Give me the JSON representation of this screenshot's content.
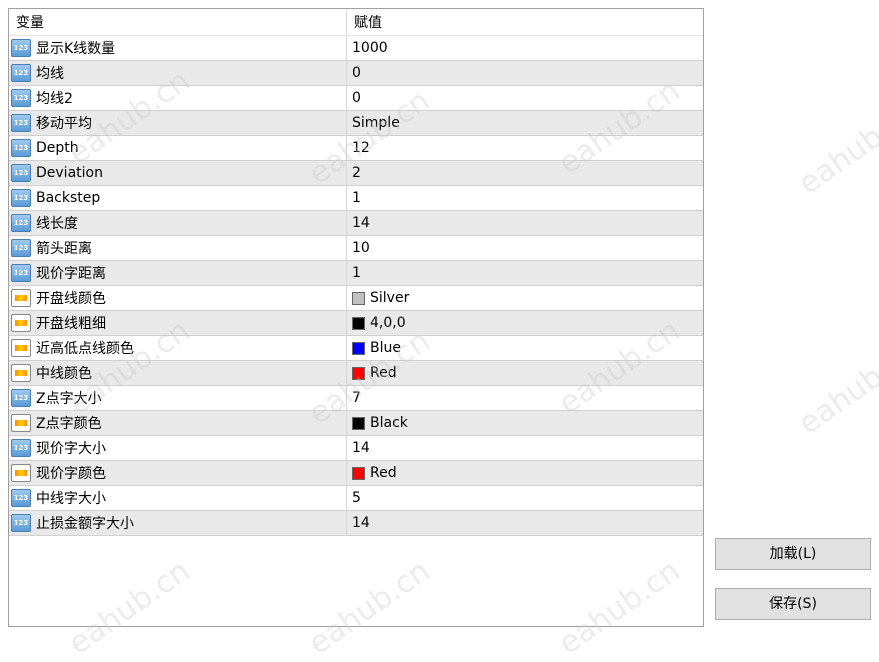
{
  "table": {
    "headers": {
      "variable": "变量",
      "value": "赋值"
    },
    "rows": [
      {
        "name": "显示K线数量",
        "value": "1000",
        "icon": "integer-icon"
      },
      {
        "name": "均线",
        "value": "0",
        "icon": "integer-icon"
      },
      {
        "name": "均线2",
        "value": "0",
        "icon": "integer-icon"
      },
      {
        "name": "移动平均",
        "value": "Simple",
        "icon": "integer-icon"
      },
      {
        "name": "Depth",
        "value": "12",
        "icon": "integer-icon"
      },
      {
        "name": "Deviation",
        "value": "2",
        "icon": "integer-icon"
      },
      {
        "name": "Backstep",
        "value": "1",
        "icon": "integer-icon"
      },
      {
        "name": "线长度",
        "value": "14",
        "icon": "integer-icon"
      },
      {
        "name": "箭头距离",
        "value": "10",
        "icon": "integer-icon"
      },
      {
        "name": "现价字距离",
        "value": "1",
        "icon": "integer-icon"
      },
      {
        "name": "开盘线颜色",
        "value": "Silver",
        "icon": "color-icon",
        "swatch": "#c0c0c0"
      },
      {
        "name": "开盘线粗细",
        "value": "4,0,0",
        "icon": "color-icon",
        "swatch": "#000000"
      },
      {
        "name": "近高低点线颜色",
        "value": "Blue",
        "icon": "color-icon",
        "swatch": "#0000ff"
      },
      {
        "name": "中线颜色",
        "value": "Red",
        "icon": "color-icon",
        "swatch": "#ff0000"
      },
      {
        "name": "Z点字大小",
        "value": "7",
        "icon": "integer-icon"
      },
      {
        "name": "Z点字颜色",
        "value": "Black",
        "icon": "color-icon",
        "swatch": "#000000"
      },
      {
        "name": "现价字大小",
        "value": "14",
        "icon": "integer-icon"
      },
      {
        "name": "现价字颜色",
        "value": "Red",
        "icon": "color-icon",
        "swatch": "#ff0000"
      },
      {
        "name": "中线字大小",
        "value": "5",
        "icon": "integer-icon"
      },
      {
        "name": "止损金额字大小",
        "value": "14",
        "icon": "integer-icon"
      }
    ]
  },
  "buttons": {
    "load": "加载(L)",
    "save": "保存(S)"
  },
  "watermark": "eahub.cn"
}
